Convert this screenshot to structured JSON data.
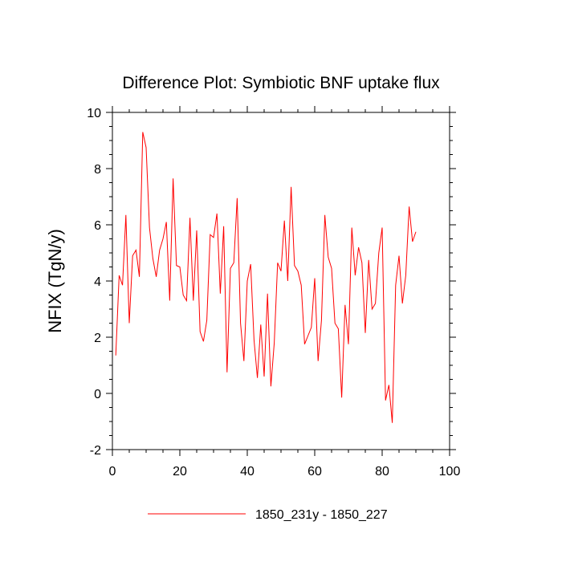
{
  "chart_data": {
    "type": "line",
    "title": "Difference Plot: Symbiotic BNF uptake flux",
    "xlabel": "",
    "ylabel": "NFIX  (TgN/y)",
    "xlim": [
      0,
      100
    ],
    "ylim": [
      -2,
      10
    ],
    "x_ticks": [
      0,
      20,
      40,
      60,
      80,
      100
    ],
    "y_ticks": [
      -2,
      0,
      2,
      4,
      6,
      8,
      10
    ],
    "x_minor_step": 5,
    "y_minor_step": 0.5,
    "grid": false,
    "legend_position": "bottom",
    "series": [
      {
        "name": "1850_231y - 1850_227",
        "color": "#ff0000",
        "x": [
          1,
          2,
          3,
          4,
          5,
          6,
          7,
          8,
          9,
          10,
          11,
          12,
          13,
          14,
          15,
          16,
          17,
          18,
          19,
          20,
          21,
          22,
          23,
          24,
          25,
          26,
          27,
          28,
          29,
          30,
          31,
          32,
          33,
          34,
          35,
          36,
          37,
          38,
          39,
          40,
          41,
          42,
          43,
          44,
          45,
          46,
          47,
          48,
          49,
          50,
          51,
          52,
          53,
          54,
          55,
          56,
          57,
          58,
          59,
          60,
          61,
          62,
          63,
          64,
          65,
          66,
          67,
          68,
          69,
          70,
          71,
          72,
          73,
          74,
          75,
          76,
          77,
          78,
          79,
          80,
          81,
          82,
          83,
          84,
          85,
          86,
          87,
          88,
          89,
          90
        ],
        "values": [
          1.35,
          4.2,
          3.85,
          6.35,
          2.5,
          4.9,
          5.1,
          4.15,
          9.3,
          8.75,
          5.9,
          4.8,
          4.15,
          5.1,
          5.5,
          6.1,
          3.3,
          7.65,
          4.55,
          4.5,
          3.5,
          3.3,
          6.25,
          3.3,
          5.8,
          2.2,
          1.85,
          2.6,
          5.65,
          5.55,
          6.4,
          3.55,
          5.95,
          0.75,
          4.45,
          4.65,
          6.95,
          2.5,
          1.15,
          4.0,
          4.6,
          1.9,
          0.55,
          2.45,
          0.6,
          3.55,
          0.25,
          1.8,
          4.65,
          4.35,
          6.15,
          4.0,
          7.35,
          4.55,
          4.35,
          3.85,
          1.75,
          2.05,
          2.35,
          4.1,
          1.15,
          2.6,
          6.35,
          4.85,
          4.45,
          2.5,
          2.3,
          -0.15,
          3.15,
          1.75,
          5.9,
          4.2,
          5.2,
          4.65,
          2.15,
          4.75,
          3.0,
          3.2,
          5.0,
          5.9,
          -0.25,
          0.3,
          -1.05,
          3.85,
          4.9,
          3.2,
          4.2,
          6.65,
          5.4,
          5.75
        ]
      }
    ]
  }
}
